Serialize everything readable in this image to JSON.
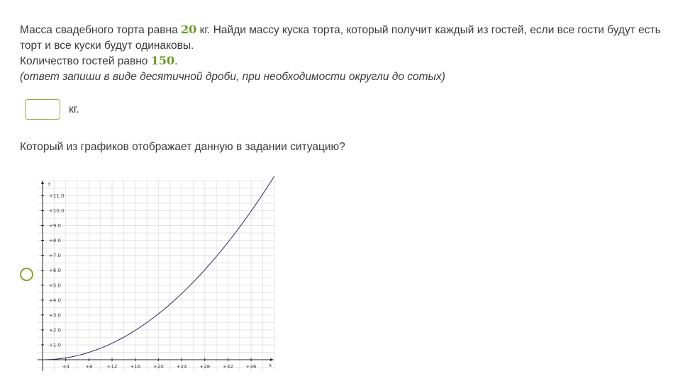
{
  "task": {
    "line1_pre": "Масса свадебного торта равна ",
    "mass": "20",
    "line1_post": " кг. Найди массу куска торта, который получит каждый из гостей, если все гости будут есть торт и все куски будут одинаковы.",
    "line2_pre": "Количество гостей равно ",
    "guests": "150",
    "line2_post": ".",
    "hint": "(ответ запиши в виде десятичной дроби, при необходимости округли до сотых)"
  },
  "answer": {
    "value": "",
    "unit": "кг."
  },
  "question": "Который из графиков отображает данную в задании ситуацию?",
  "colors": {
    "accent": "#7fa828",
    "number": "#6b9a22"
  },
  "chart_data": {
    "type": "line",
    "xlabel": "x",
    "ylabel": "f",
    "xlim": [
      0,
      40
    ],
    "ylim": [
      0,
      12
    ],
    "x_ticks": [
      "+4",
      "+8",
      "+12",
      "+16",
      "+20",
      "+24",
      "+28",
      "+32",
      "+36"
    ],
    "y_ticks": [
      "+1.0",
      "+2.0",
      "+3.0",
      "+4.0",
      "+5.0",
      "+6.0",
      "+7.0",
      "+8.0",
      "+9.0",
      "+10.0",
      "+11.0"
    ],
    "grid": true,
    "series": [
      {
        "x": [
          0,
          4,
          8,
          12,
          16,
          20,
          24,
          28,
          32,
          36,
          40
        ],
        "y": [
          0,
          0.12,
          0.49,
          1.11,
          1.97,
          3.08,
          4.43,
          6.03,
          7.88,
          9.97,
          12.3
        ]
      }
    ]
  }
}
